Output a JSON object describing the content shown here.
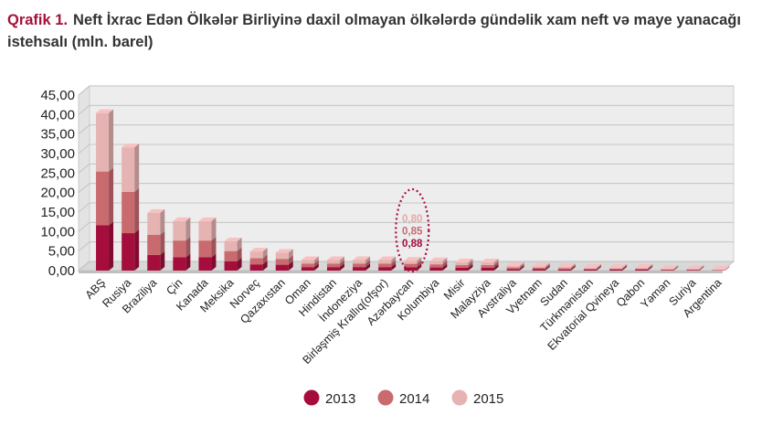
{
  "title": {
    "prefix": "Qrafik 1.",
    "text": "Neft İxrac Edən Ölkələr Birliyinə daxil olmayan ölkələrdə gündəlik xam neft və maye yanacağı istehsalı (mln. barel)"
  },
  "chart_data": {
    "type": "bar",
    "stacked": true,
    "three_d": true,
    "ylim": [
      0,
      45
    ],
    "yticks": [
      "0,00",
      "5,00",
      "10,00",
      "15,00",
      "20,00",
      "25,00",
      "30,00",
      "35,00",
      "40,00",
      "45,00"
    ],
    "categories": [
      "ABŞ",
      "Rusiya",
      "Braziliya",
      "Çin",
      "Kanada",
      "Meksika",
      "Norveç",
      "Qazaxıstan",
      "Oman",
      "Hindistan",
      "İndoneziya",
      "Birləşmiş Krallıq(ofşor)",
      "Azərbaycan",
      "Kolumbiya",
      "Misir",
      "Malayziya",
      "Avstraliya",
      "Vyetnam",
      "Sudan",
      "Türkmənistan",
      "Ekvatorial Qvineya",
      "Qabon",
      "Yəmən",
      "Suriya",
      "Argentina"
    ],
    "series": [
      {
        "name": "2013",
        "color": "#a50e3c",
        "values": [
          11.6,
          9.6,
          4.0,
          3.4,
          3.4,
          2.4,
          1.6,
          1.5,
          0.9,
          0.9,
          0.9,
          0.9,
          0.88,
          0.8,
          0.7,
          0.7,
          0.4,
          0.35,
          0.3,
          0.25,
          0.25,
          0.25,
          0.15,
          0.15,
          0.05
        ]
      },
      {
        "name": "2014",
        "color": "#c96a6f",
        "values": [
          13.8,
          10.6,
          5.2,
          4.3,
          4.3,
          2.6,
          1.6,
          1.5,
          0.9,
          0.9,
          0.9,
          0.9,
          0.85,
          0.8,
          0.7,
          0.7,
          0.4,
          0.35,
          0.3,
          0.25,
          0.25,
          0.25,
          0.15,
          0.15,
          0.05
        ]
      },
      {
        "name": "2015",
        "color": "#e6b3b3",
        "values": [
          15.0,
          11.4,
          5.6,
          5.0,
          5.0,
          2.5,
          1.7,
          1.6,
          0.9,
          0.9,
          0.9,
          0.9,
          0.8,
          0.8,
          0.7,
          0.7,
          0.4,
          0.35,
          0.3,
          0.25,
          0.25,
          0.25,
          0.15,
          0.15,
          0.05
        ]
      }
    ],
    "annotation": {
      "category": "Azərbaycan",
      "labels": [
        {
          "text": "0,80",
          "color": "#e6a8a8"
        },
        {
          "text": "0,85",
          "color": "#c96a6f"
        },
        {
          "text": "0,88",
          "color": "#a50e3c"
        }
      ]
    },
    "legend": {
      "position": "bottom",
      "entries": [
        "2013",
        "2014",
        "2015"
      ]
    },
    "colors": {
      "wall": "#ededed",
      "floor": "#d8d8d8",
      "grid": "#bdbdbd",
      "annotation_ring": "#a50e3c"
    }
  }
}
